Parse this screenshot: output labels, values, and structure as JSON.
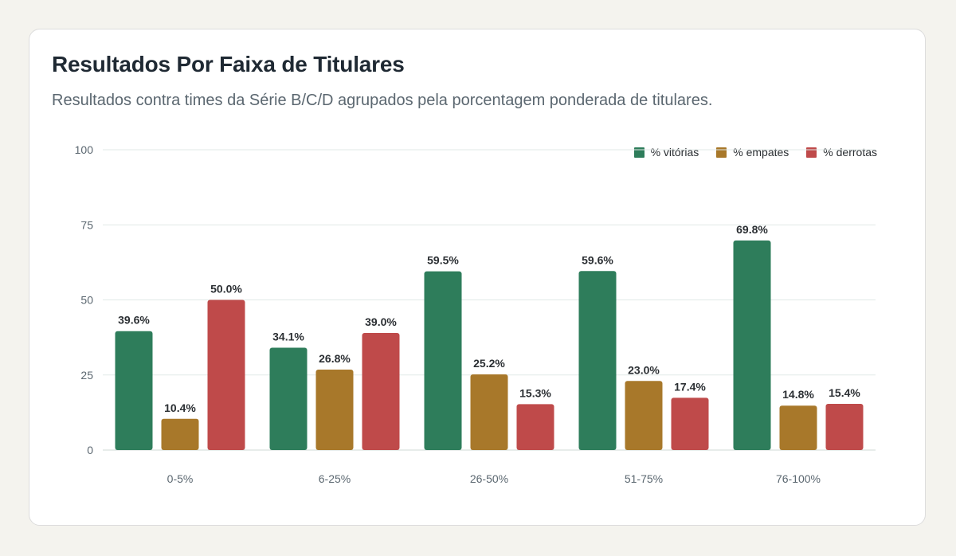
{
  "card": {
    "title": "Resultados Por Faixa de Titulares",
    "subtitle": "Resultados contra times da Série B/C/D agrupados pela porcentagem ponderada de titulares."
  },
  "chart_data": {
    "type": "bar",
    "title": "Resultados Por Faixa de Titulares",
    "subtitle": "Resultados contra times da Série B/C/D agrupados pela porcentagem ponderada de titulares.",
    "xlabel": "",
    "ylabel": "",
    "categories": [
      "0-5%",
      "6-25%",
      "26-50%",
      "51-75%",
      "76-100%"
    ],
    "series": [
      {
        "name": "% vitórias",
        "color": "#2e7d5b",
        "values": [
          39.6,
          34.1,
          59.5,
          59.6,
          69.8
        ]
      },
      {
        "name": "% empates",
        "color": "#a8782a",
        "values": [
          10.4,
          26.8,
          25.2,
          23.0,
          14.8
        ]
      },
      {
        "name": "% derrotas",
        "color": "#bf4a4a",
        "values": [
          50.0,
          39.0,
          15.3,
          17.4,
          15.4
        ]
      }
    ],
    "value_labels": [
      [
        "39.6%",
        "34.1%",
        "59.5%",
        "59.6%",
        "69.8%"
      ],
      [
        "10.4%",
        "26.8%",
        "25.2%",
        "23.0%",
        "14.8%"
      ],
      [
        "50.0%",
        "39.0%",
        "15.3%",
        "17.4%",
        "15.4%"
      ]
    ],
    "ylim": [
      0,
      100
    ],
    "yticks": [
      "0",
      "25",
      "50",
      "75",
      "100"
    ],
    "grid": true,
    "legend_position": "top-right"
  }
}
